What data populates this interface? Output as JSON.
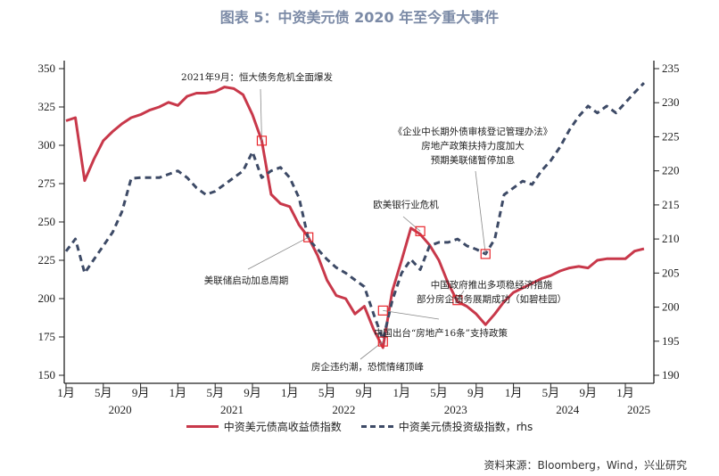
{
  "title": "图表 5：中资美元债 2020 年至今重大事件",
  "source": "资料来源：Bloomberg，Wind，兴业研究",
  "chart_data": {
    "type": "line",
    "x_start": "2020-01",
    "x_end": "2025-03",
    "x_frequency": "monthly",
    "x_month_ticks": [
      "1月",
      "5月",
      "9月",
      "1月",
      "5月",
      "9月",
      "1月",
      "5月",
      "9月",
      "1月",
      "5月",
      "9月",
      "1月",
      "5月",
      "9月",
      "1月"
    ],
    "x_year_labels": [
      "2020",
      "2021",
      "2022",
      "2023",
      "2024",
      "2025"
    ],
    "y_left": {
      "range": [
        150,
        350
      ],
      "ticks": [
        150,
        175,
        200,
        225,
        250,
        275,
        300,
        325,
        350
      ]
    },
    "y_right": {
      "range": [
        190,
        235
      ],
      "ticks": [
        190,
        195,
        200,
        205,
        210,
        215,
        220,
        225,
        230,
        235
      ]
    },
    "grid": false,
    "legend_placement": "bottom",
    "series": [
      {
        "name": "中资美元债高收益债指数",
        "axis": "left",
        "color": "#c8384a",
        "style": "solid",
        "values": [
          316,
          318,
          277,
          291,
          303,
          309,
          314,
          318,
          320,
          323,
          325,
          328,
          326,
          332,
          334,
          334,
          335,
          338,
          337,
          333,
          320,
          303,
          268,
          262,
          260,
          248,
          240,
          228,
          212,
          202,
          200,
          190,
          195,
          180,
          168,
          205,
          225,
          246,
          242,
          235,
          225,
          210,
          198,
          195,
          190,
          183,
          190,
          198,
          204,
          207,
          210,
          213,
          215,
          218,
          220,
          221,
          220,
          225,
          226,
          226,
          226,
          231,
          232.5
        ]
      },
      {
        "name": "中资美元债投资级指数，rhs",
        "axis": "right",
        "color": "#3d4a66",
        "style": "dashed",
        "values": [
          208.2,
          210,
          205,
          207,
          209,
          211,
          214,
          218.9,
          219,
          219,
          219,
          219.5,
          220,
          219,
          217.5,
          216.5,
          217,
          218,
          219,
          220,
          222.8,
          219,
          220,
          220.5,
          219,
          216,
          210,
          208.5,
          207,
          205.8,
          205,
          204,
          203,
          199,
          195.2,
          201,
          205,
          207,
          205.5,
          209,
          209.5,
          209.5,
          210,
          209,
          208.5,
          207.8,
          210,
          216.5,
          217.5,
          218.5,
          218,
          220,
          221.5,
          223.5,
          226,
          228,
          229.5,
          228.5,
          229.5,
          228.5,
          230,
          231.5,
          232.9
        ]
      }
    ],
    "annotations": [
      {
        "text": [
          "2021年9月：恒大债务危机全面爆发"
        ],
        "date": "2021-10",
        "series": "中资美元债高收益债指数",
        "value": 303
      },
      {
        "text": [
          "美联储启动加息周期"
        ],
        "date": "2022-03",
        "series": "中资美元债高收益债指数",
        "value": 240
      },
      {
        "text": [
          "房企违约潮，恐慌情绪顶峰"
        ],
        "date": "2022-11",
        "series": "中资美元债高收益债指数",
        "value": 172
      },
      {
        "text": [
          "中国出台“房地产16条”支持政策"
        ],
        "date": "2022-11",
        "series": "中资美元债投资级指数，rhs",
        "value": 199.5
      },
      {
        "text": [
          "欧美银行业危机"
        ],
        "date": "2023-03",
        "series": "中资美元债高收益债指数",
        "value": 244
      },
      {
        "text": [
          "中国政府推出多项稳经济措施",
          "部分房企债务展期成功（如碧桂园）"
        ],
        "date": "2023-07",
        "series": "中资美元债高收益债指数",
        "value": 199
      },
      {
        "text": [
          "《企业中长期外债审核登记管理办法》",
          "房地产政策扶持力度加大",
          "预期美联储暂停加息"
        ],
        "date": "2023-10",
        "series": "中资美元债投资级指数，rhs",
        "value": 207.8
      }
    ]
  }
}
